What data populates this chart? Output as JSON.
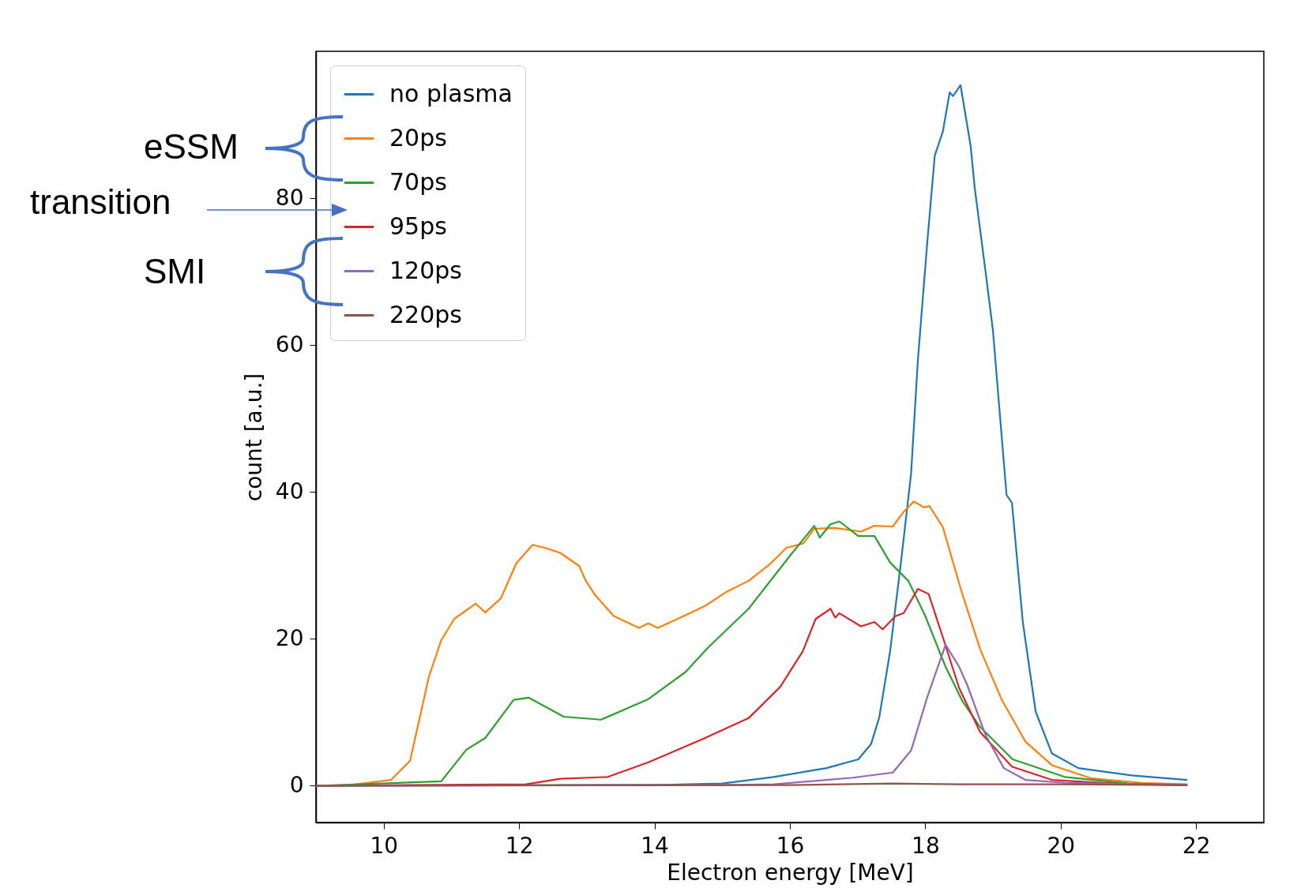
{
  "chart_data": {
    "type": "line",
    "xlabel": "Electron energy [MeV]",
    "ylabel": "count [a.u.]",
    "xlim": [
      9,
      23
    ],
    "ylim": [
      -5,
      100
    ],
    "xticks": [
      10,
      12,
      14,
      16,
      18,
      20,
      22
    ],
    "yticks": [
      0,
      20,
      40,
      60,
      80
    ],
    "grid": false,
    "legend": "top left",
    "annotations": [
      "eSSM",
      "transition",
      "SMI"
    ],
    "series": [
      {
        "name": "no plasma",
        "color": "#1f77b4",
        "x": [
          9,
          14,
          15,
          15.76,
          16.54,
          17.01,
          17.2,
          17.32,
          17.48,
          17.64,
          17.79,
          17.89,
          18.03,
          18.14,
          18.26,
          18.36,
          18.41,
          18.52,
          18.67,
          18.73,
          18.89,
          19.0,
          19.09,
          19.2,
          19.28,
          19.44,
          19.63,
          19.87,
          20.26,
          21.05,
          21.87
        ],
        "values": [
          0,
          0.1,
          0.3,
          1.2,
          2.4,
          3.6,
          5.7,
          9.3,
          18.3,
          30.4,
          42.5,
          57.9,
          74.1,
          85.8,
          89.1,
          94.4,
          93.9,
          95.4,
          87.1,
          81.4,
          70,
          61.9,
          51.8,
          39.6,
          38.5,
          22.3,
          10.1,
          4.4,
          2.4,
          1.4,
          0.8
        ]
      },
      {
        "name": "20ps",
        "color": "#ff7f0e",
        "x": [
          9,
          9.5,
          10.11,
          10.39,
          10.67,
          10.85,
          11.04,
          11.36,
          11.5,
          11.73,
          11.96,
          12.2,
          12.38,
          12.61,
          12.89,
          12.98,
          13.12,
          13.4,
          13.77,
          13.91,
          14.05,
          14.38,
          14.75,
          15.08,
          15.39,
          15.72,
          15.95,
          16.2,
          16.36,
          16.67,
          17.05,
          17.25,
          17.52,
          17.68,
          17.83,
          17.98,
          18.06,
          18.26,
          18.54,
          18.81,
          19.13,
          19.48,
          19.87,
          20.46,
          21.2,
          21.87
        ],
        "values": [
          0,
          0.1,
          0.8,
          3.4,
          14.9,
          19.8,
          22.7,
          24.8,
          23.6,
          25.5,
          30.3,
          32.8,
          32.4,
          31.7,
          29.9,
          28,
          26,
          23.1,
          21.5,
          22.1,
          21.5,
          22.9,
          24.5,
          26.5,
          27.9,
          30.3,
          32.4,
          33.0,
          35,
          35.1,
          34.6,
          35.4,
          35.3,
          37.3,
          38.7,
          37.9,
          38.1,
          35.2,
          26.3,
          18.6,
          11.7,
          6.0,
          2.8,
          1.0,
          0.4,
          0.2
        ]
      },
      {
        "name": "70ps",
        "color": "#2ca02c",
        "x": [
          9,
          10.85,
          11.22,
          11.5,
          11.92,
          12.14,
          12.66,
          13.21,
          13.91,
          14.46,
          14.79,
          15.39,
          16.0,
          16.36,
          16.44,
          16.6,
          16.73,
          17.01,
          17.25,
          17.48,
          17.75,
          18.0,
          18.3,
          18.55,
          18.81,
          19.29,
          20.06,
          21.0,
          21.87
        ],
        "values": [
          0,
          0.6,
          4.9,
          6.5,
          11.7,
          12,
          9.4,
          9.0,
          11.8,
          15.5,
          18.8,
          24.1,
          31.3,
          35.4,
          33.8,
          35.6,
          36.0,
          34,
          34,
          30.4,
          27.9,
          23.1,
          16.2,
          11.5,
          8.0,
          3.6,
          1.2,
          0.3,
          0.1
        ]
      },
      {
        "name": "95ps",
        "color": "#d62728",
        "x": [
          9,
          12.1,
          12.61,
          13.31,
          13.91,
          14.7,
          15.39,
          15.86,
          16.19,
          16.38,
          16.6,
          16.67,
          16.73,
          17.05,
          17.25,
          17.37,
          17.56,
          17.68,
          17.89,
          18.05,
          18.26,
          18.5,
          18.81,
          19.28,
          19.87,
          21.0,
          21.87
        ],
        "values": [
          0,
          0.2,
          0.95,
          1.2,
          3.2,
          6.3,
          9.2,
          13.5,
          18.3,
          22.7,
          24.1,
          22.9,
          23.5,
          21.7,
          22.3,
          21.3,
          23.1,
          23.5,
          26.8,
          26.1,
          20.2,
          13.3,
          7.3,
          2.6,
          0.8,
          0.2,
          0.1
        ]
      },
      {
        "name": "120ps",
        "color": "#9467bd",
        "x": [
          9,
          15,
          15.76,
          16.93,
          17.52,
          17.79,
          18.03,
          18.3,
          18.5,
          18.62,
          18.89,
          19.16,
          19.48,
          20.06,
          21.87
        ],
        "values": [
          0,
          0.1,
          0.2,
          1.1,
          1.8,
          4.8,
          12.1,
          19.2,
          16.2,
          13.7,
          6.9,
          2.4,
          0.8,
          0.4,
          0.1
        ]
      },
      {
        "name": "220ps",
        "color": "#8c564b",
        "x": [
          9,
          14,
          16,
          17.5,
          18.5,
          20,
          21.87
        ],
        "values": [
          0,
          0.1,
          0.1,
          0.3,
          0.2,
          0.2,
          0.1
        ]
      }
    ]
  }
}
